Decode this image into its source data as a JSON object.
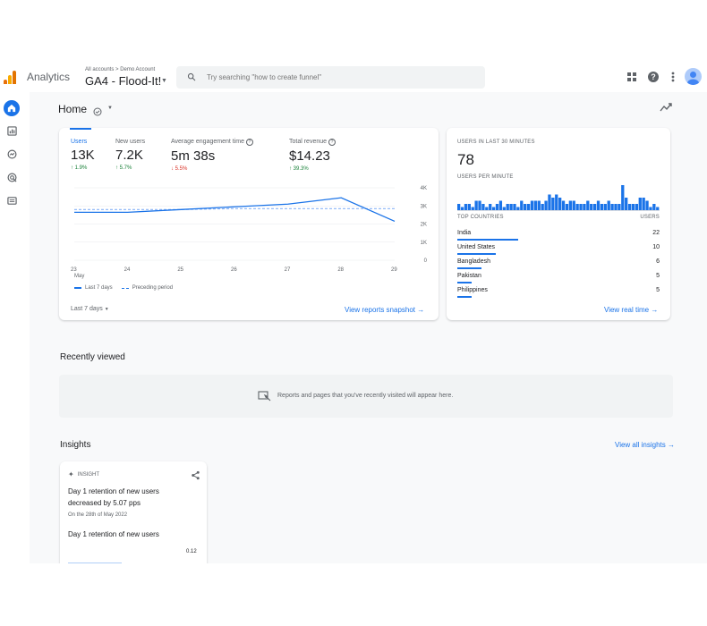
{
  "app": {
    "name": "Analytics"
  },
  "account": {
    "breadcrumb": "All accounts > Demo Account",
    "property": "GA4 - Flood-It!"
  },
  "search": {
    "placeholder": "Try searching \"how to create funnel\""
  },
  "icons": {
    "apps": "apps-grid-icon",
    "help": "help-icon",
    "more": "more-vert-icon",
    "avatar": "account-avatar-icon",
    "nav": [
      "home-icon",
      "reports-icon",
      "explore-icon",
      "advertising-icon",
      "configure-icon"
    ]
  },
  "colors": {
    "accent": "#1a73e8",
    "up": "#188038",
    "down": "#d93025",
    "logo": [
      "#f9ab00",
      "#e37400",
      "#e8710a"
    ]
  },
  "home": {
    "title": "Home"
  },
  "overview": {
    "metrics": [
      {
        "label": "Users",
        "value": "13K",
        "delta": "↑ 1.9%",
        "trend": "up"
      },
      {
        "label": "New users",
        "value": "7.2K",
        "delta": "↑ 5.7%",
        "trend": "up"
      },
      {
        "label": "Average engagement time",
        "value": "5m 38s",
        "delta": "↓ 5.5%",
        "trend": "down"
      },
      {
        "label": "Total revenue",
        "value": "$14.23",
        "delta": "↑ 39.3%",
        "trend": "up"
      }
    ],
    "legend": {
      "current": "Last 7 days",
      "previous": "Preceding period"
    },
    "date_range": "Last 7 days",
    "view_link": "View reports snapshot"
  },
  "chart_data": {
    "type": "line",
    "x": [
      "23",
      "24",
      "25",
      "26",
      "27",
      "28",
      "29"
    ],
    "x_sublabel": "May",
    "y_ticks": [
      "4K",
      "3K",
      "2K",
      "1K",
      "0"
    ],
    "ylim": [
      0,
      4000
    ],
    "series": [
      {
        "name": "Last 7 days",
        "values": [
          2650,
          2650,
          2800,
          2950,
          3100,
          3450,
          2150
        ]
      },
      {
        "name": "Preceding period",
        "values": [
          2800,
          2800,
          2800,
          2850,
          2850,
          2850,
          2850
        ]
      }
    ]
  },
  "realtime": {
    "title": "USERS IN LAST 30 MINUTES",
    "value": "78",
    "per_minute_label": "USERS PER MINUTE",
    "per_minute": [
      2,
      1,
      2,
      2,
      1,
      3,
      3,
      2,
      1,
      2,
      1,
      2,
      3,
      1,
      2,
      2,
      2,
      1,
      3,
      2,
      2,
      3,
      3,
      3,
      2,
      3,
      5,
      4,
      5,
      4,
      3,
      2,
      3,
      3,
      2,
      2,
      2,
      3,
      2,
      2,
      3,
      2,
      2,
      3,
      2,
      2,
      2,
      8,
      4,
      2,
      2,
      2,
      4,
      4,
      3,
      1,
      2,
      1
    ],
    "countries_header": "TOP COUNTRIES",
    "users_header": "USERS",
    "countries": [
      {
        "name": "India",
        "users": "22",
        "share": 0.3
      },
      {
        "name": "United States",
        "users": "10",
        "share": 0.19
      },
      {
        "name": "Bangladesh",
        "users": "6",
        "share": 0.12
      },
      {
        "name": "Pakistan",
        "users": "5",
        "share": 0.07
      },
      {
        "name": "Philippines",
        "users": "5",
        "share": 0.07
      }
    ],
    "view_link": "View real time"
  },
  "recent": {
    "title": "Recently viewed",
    "empty": "Reports and pages that you've recently visited will appear here."
  },
  "insights": {
    "title": "Insights",
    "view_all": "View all insights",
    "card": {
      "tag": "INSIGHT",
      "headline": "Day 1 retention of new users decreased by 5.07 pps",
      "date": "On the 28th of May 2022",
      "subtitle": "Day 1 retention of new users",
      "value": "0.12"
    }
  }
}
